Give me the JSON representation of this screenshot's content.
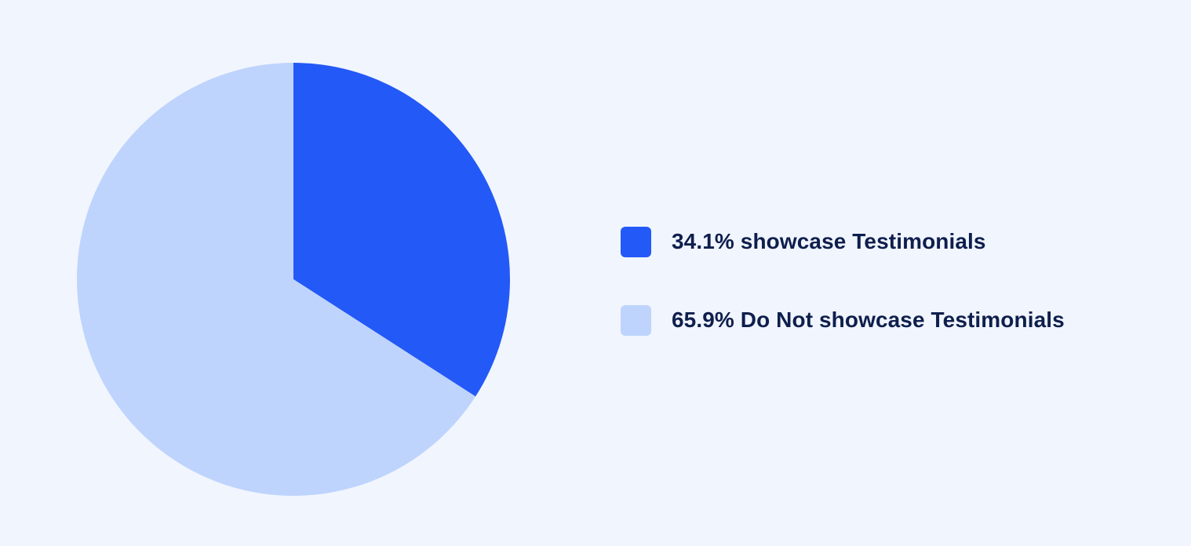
{
  "chart_data": {
    "type": "pie",
    "title": "",
    "start_angle": "12 o'clock",
    "direction": "clockwise",
    "series": [
      {
        "name": "Testimonials",
        "slices": [
          {
            "label": "34.1% showcase Testimonials",
            "value": 34.1,
            "color": "#2359f7"
          },
          {
            "label": "65.9% Do Not showcase Testimonials",
            "value": 65.9,
            "color": "#bed4fd"
          }
        ]
      }
    ],
    "legend": {
      "placement": "right"
    }
  },
  "colors": {
    "background": "#f1f5fe",
    "text": "#0f1f4d"
  }
}
